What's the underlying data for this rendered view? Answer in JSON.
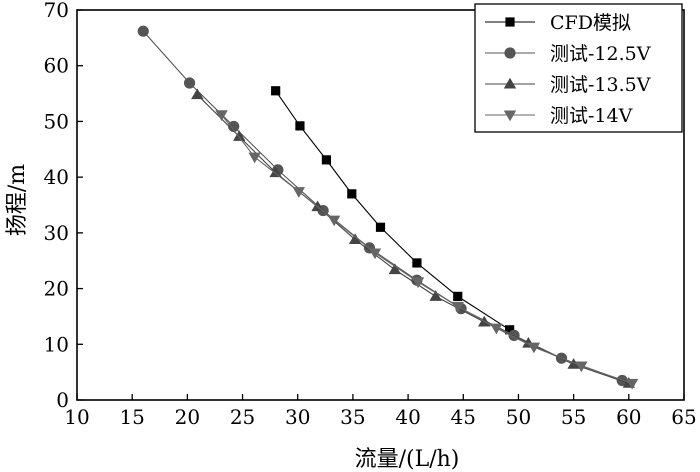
{
  "chart_data": {
    "type": "line",
    "title": "",
    "xlabel": "流量/(L/h)",
    "ylabel": "扬程/m",
    "xlim": [
      10,
      65
    ],
    "ylim": [
      0,
      70
    ],
    "xticks": [
      10,
      15,
      20,
      25,
      30,
      35,
      40,
      45,
      50,
      55,
      60,
      65
    ],
    "yticks": [
      0,
      10,
      20,
      30,
      40,
      50,
      60,
      70
    ],
    "grid": false,
    "legend": "top-right",
    "series": [
      {
        "name": "CFD模拟",
        "marker": "square",
        "color": "#000000",
        "points": [
          [
            28.0,
            55.5
          ],
          [
            30.2,
            49.2
          ],
          [
            32.6,
            43.1
          ],
          [
            34.9,
            37.0
          ],
          [
            37.5,
            31.0
          ],
          [
            40.8,
            24.6
          ],
          [
            44.5,
            18.6
          ],
          [
            49.2,
            12.6
          ]
        ]
      },
      {
        "name": "测试-12.5V",
        "marker": "circle",
        "color": "#555555",
        "points": [
          [
            16.0,
            66.2
          ],
          [
            20.2,
            56.9
          ],
          [
            24.2,
            49.1
          ],
          [
            28.2,
            41.3
          ],
          [
            32.3,
            34.0
          ],
          [
            36.5,
            27.3
          ],
          [
            40.8,
            21.5
          ],
          [
            44.8,
            16.4
          ],
          [
            49.6,
            11.6
          ],
          [
            53.9,
            7.5
          ],
          [
            59.4,
            3.5
          ]
        ]
      },
      {
        "name": "测试-13.5V",
        "marker": "triangle-up",
        "color": "#444444",
        "points": [
          [
            20.9,
            54.8
          ],
          [
            24.7,
            47.3
          ],
          [
            28.0,
            40.8
          ],
          [
            31.8,
            34.7
          ],
          [
            35.2,
            28.8
          ],
          [
            38.8,
            23.4
          ],
          [
            42.5,
            18.6
          ],
          [
            46.9,
            14.0
          ],
          [
            50.9,
            10.2
          ],
          [
            55.0,
            6.4
          ],
          [
            60.0,
            3.0
          ]
        ]
      },
      {
        "name": "测试-14V",
        "marker": "triangle-down",
        "color": "#666666",
        "points": [
          [
            23.1,
            51.2
          ],
          [
            26.1,
            43.6
          ],
          [
            30.1,
            37.4
          ],
          [
            33.3,
            32.3
          ],
          [
            37.0,
            26.4
          ],
          [
            40.9,
            21.2
          ],
          [
            44.5,
            16.8
          ],
          [
            48.0,
            12.9
          ],
          [
            51.4,
            9.5
          ],
          [
            55.7,
            6.1
          ],
          [
            60.3,
            3.0
          ]
        ]
      }
    ]
  }
}
